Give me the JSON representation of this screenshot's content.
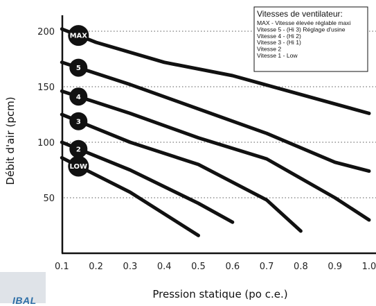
{
  "chart_data": {
    "type": "line",
    "title": "",
    "xlabel": "Pression statique (po c.e.)",
    "ylabel": "Débit d'air (pcm)",
    "xlim": [
      0,
      1.0
    ],
    "ylim": [
      0,
      220
    ],
    "x_ticks": [
      "0.1",
      "0.2",
      "0.3",
      "0.4",
      "0.5",
      "0.6",
      "0.7",
      "0.8",
      "0.9",
      "1.0"
    ],
    "y_ticks": [
      "50",
      "100",
      "150",
      "200"
    ],
    "y_tick_values": [
      50,
      100,
      150,
      200
    ],
    "grid": "dotted horizontal at y ticks",
    "legend_placement": "top-right",
    "legend": {
      "title": "Vitesses de ventilateur:",
      "entries": [
        "MAX - Vitesse élevée réglable maxi",
        "Vitesse 5 - (Hi 3) Réglage d'usine",
        "Vitesse 4 - (Hi 2)",
        "Vitesse 3 - (Hi 1)",
        "Vitesse 2",
        "Vitesse 1 - Low"
      ]
    },
    "series": [
      {
        "name": "MAX",
        "x": [
          0.1,
          0.2,
          0.4,
          0.6,
          0.8,
          1.0
        ],
        "y": [
          202,
          190,
          172,
          160,
          143,
          126
        ]
      },
      {
        "name": "5",
        "x": [
          0.1,
          0.3,
          0.5,
          0.7,
          0.9,
          1.0
        ],
        "y": [
          172,
          152,
          130,
          108,
          82,
          74
        ]
      },
      {
        "name": "4",
        "x": [
          0.1,
          0.3,
          0.5,
          0.7,
          0.9,
          1.0
        ],
        "y": [
          146,
          126,
          104,
          85,
          50,
          30
        ]
      },
      {
        "name": "3",
        "x": [
          0.1,
          0.3,
          0.5,
          0.7,
          0.8
        ],
        "y": [
          125,
          100,
          80,
          48,
          20
        ]
      },
      {
        "name": "2",
        "x": [
          0.1,
          0.3,
          0.5,
          0.6
        ],
        "y": [
          100,
          75,
          45,
          28
        ]
      },
      {
        "name": "LOW",
        "x": [
          0.1,
          0.3,
          0.5
        ],
        "y": [
          86,
          55,
          16
        ]
      }
    ]
  },
  "logo_text": "IBAL",
  "colors": {
    "series": "#111111",
    "badge": "#111111",
    "grid": "#555555",
    "logo": "#2e6fa7"
  }
}
